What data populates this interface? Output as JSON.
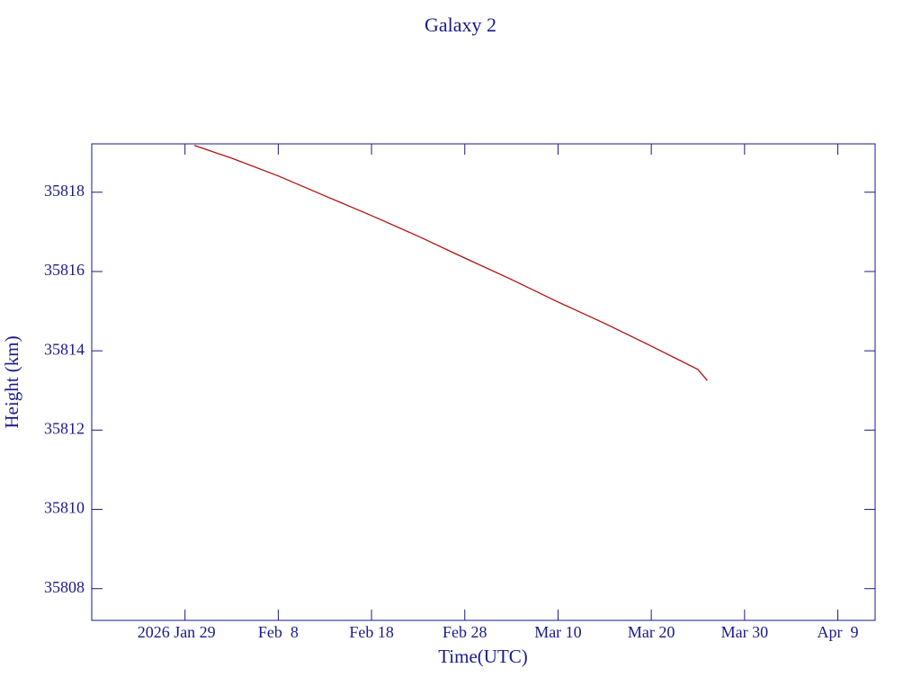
{
  "chart_data": {
    "type": "line",
    "title": "Galaxy 2",
    "x_label": "Time(UTC)",
    "y_label": "Height (km)",
    "x": [
      "2026-01-30",
      "2026-02-03",
      "2026-02-08",
      "2026-02-13",
      "2026-02-18",
      "2026-02-23",
      "2026-02-28",
      "2026-03-05",
      "2026-03-10",
      "2026-03-15",
      "2026-03-20",
      "2026-03-25",
      "2026-03-26"
    ],
    "series": [
      {
        "name": "Height",
        "color": "#b01010",
        "values": [
          35819.18,
          35818.86,
          35818.41,
          35817.91,
          35817.41,
          35816.89,
          35816.34,
          35815.8,
          35815.23,
          35814.69,
          35814.12,
          35813.53,
          35813.25
        ]
      }
    ],
    "xlim": [
      "2026-01-19",
      "2026-04-13"
    ],
    "xticks": [
      {
        "value": "2026-01-29",
        "label": "2026 Jan 29"
      },
      {
        "value": "2026-02-08",
        "label": "Feb  8"
      },
      {
        "value": "2026-02-18",
        "label": "Feb 18"
      },
      {
        "value": "2026-02-28",
        "label": "Feb 28"
      },
      {
        "value": "2026-03-10",
        "label": "Mar 10"
      },
      {
        "value": "2026-03-20",
        "label": "Mar 20"
      },
      {
        "value": "2026-03-30",
        "label": "Mar 30"
      },
      {
        "value": "2026-04-09",
        "label": "Apr  9"
      }
    ],
    "ylim": [
      35807.2,
      35819.22
    ],
    "yticks": [
      35808,
      35810,
      35812,
      35814,
      35816,
      35818
    ],
    "axis_color": "#1a1a8c",
    "grid": false
  }
}
